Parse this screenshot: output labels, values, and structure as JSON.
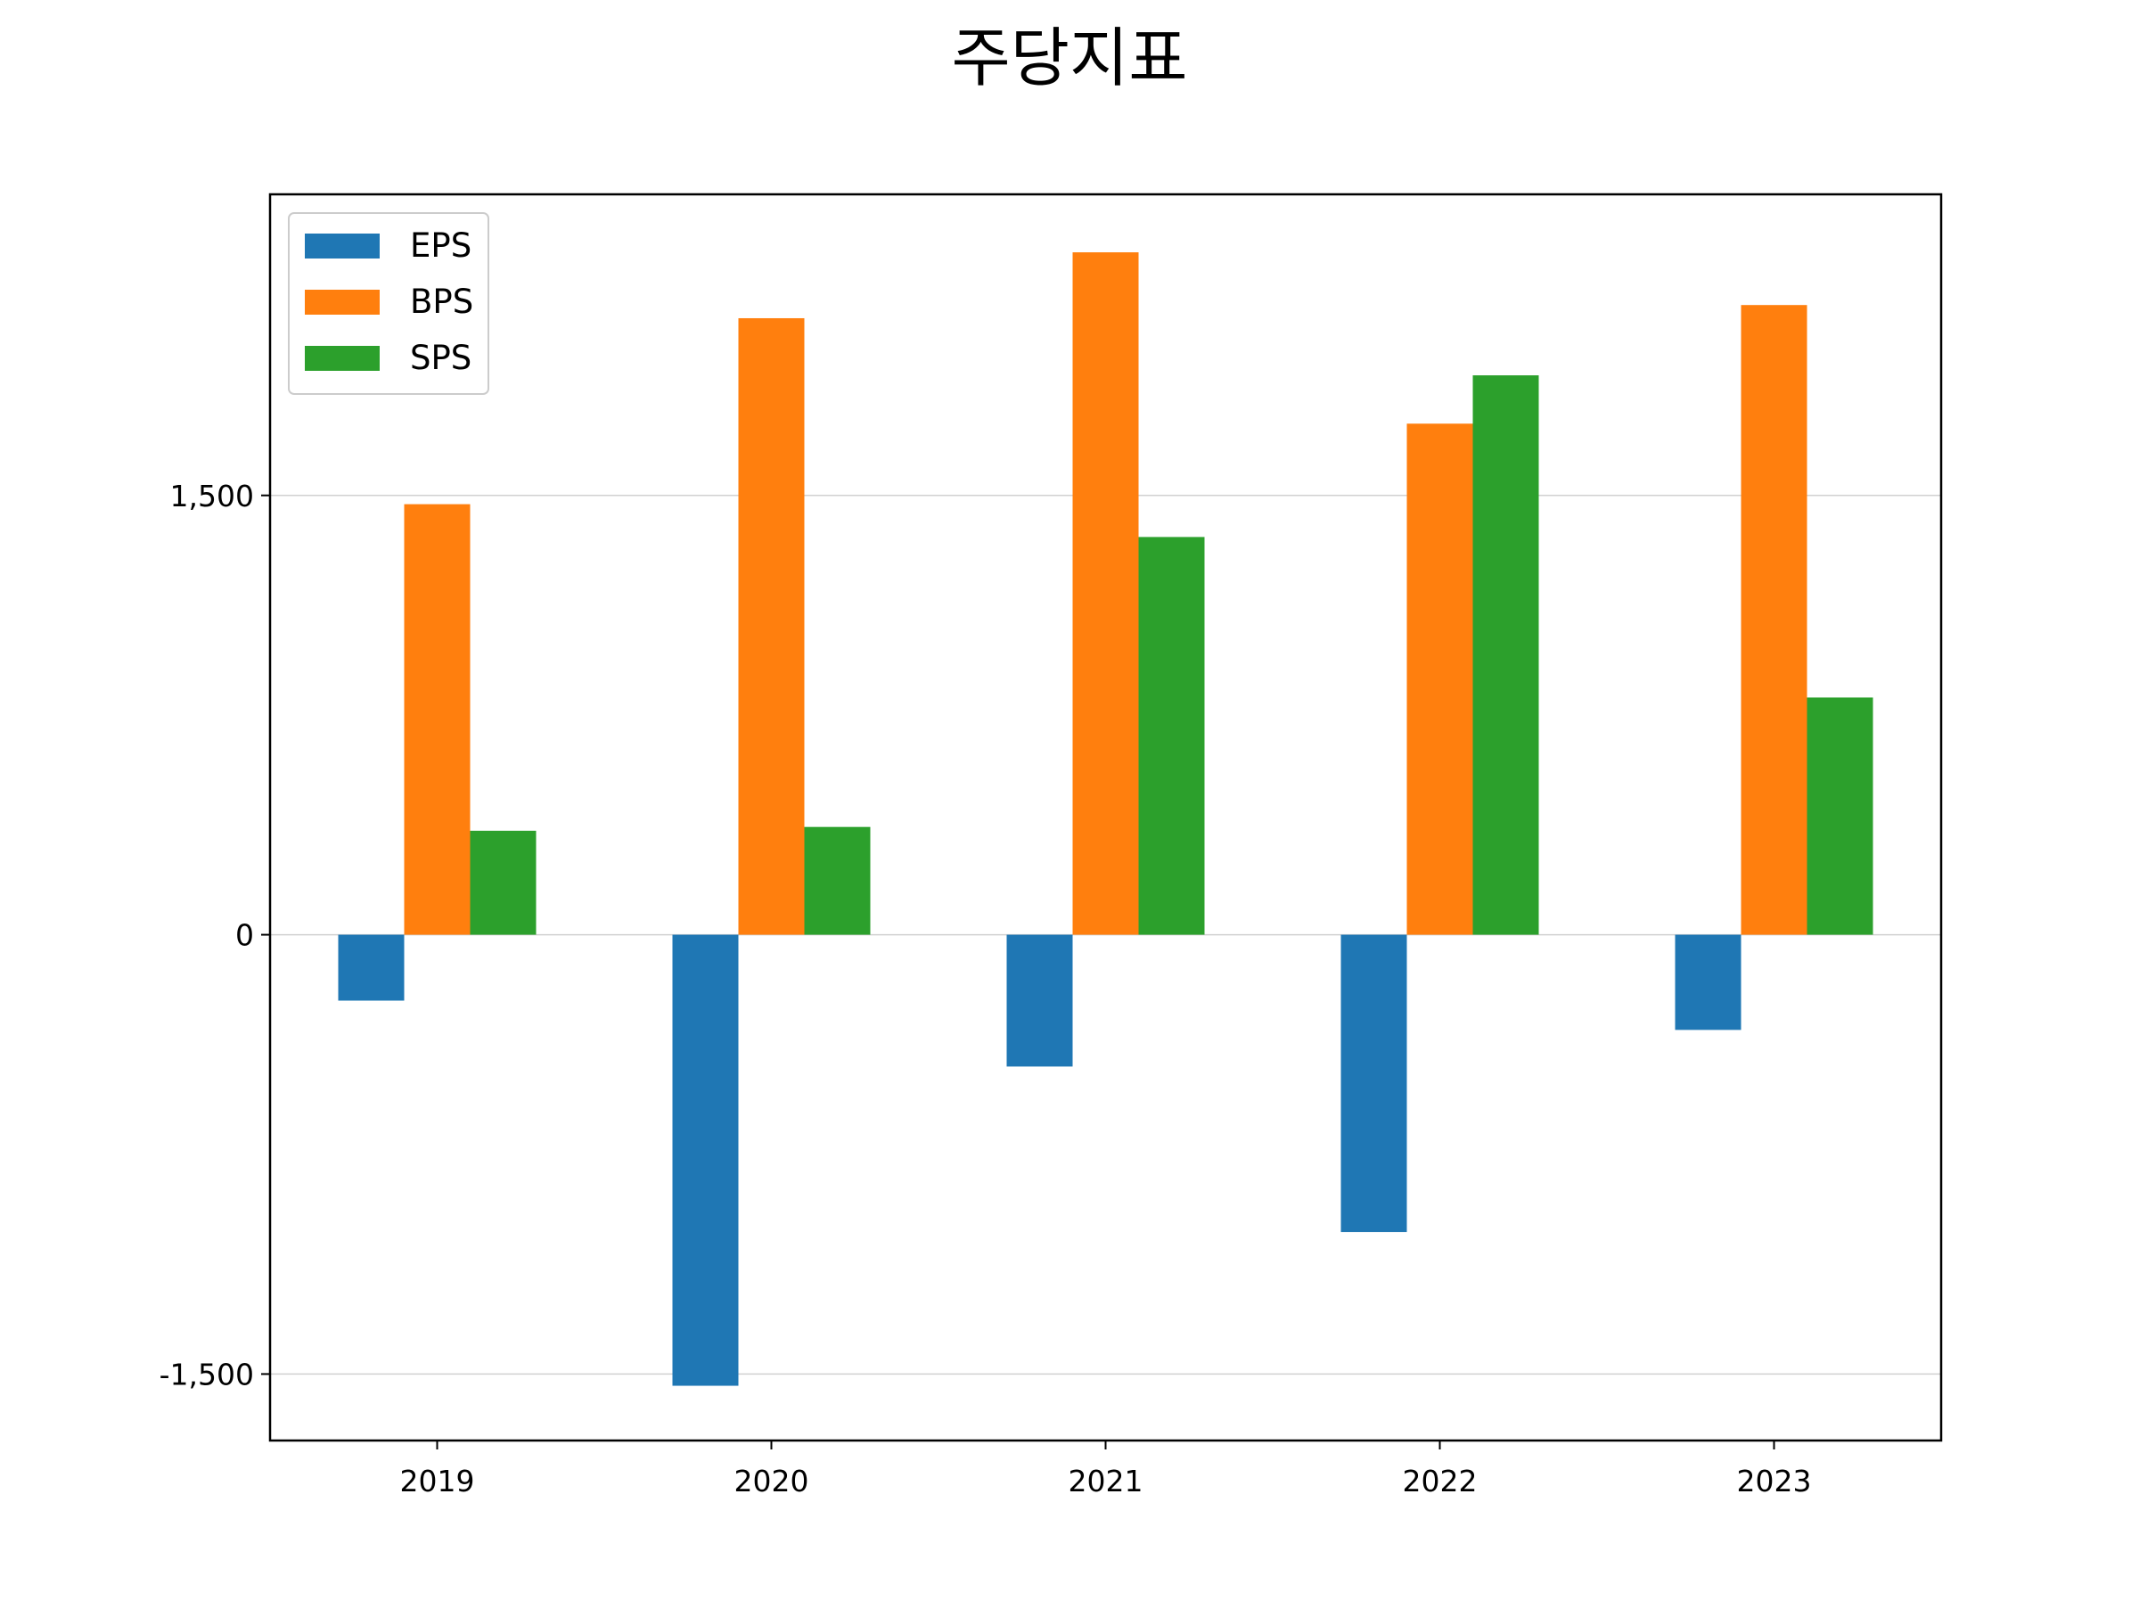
{
  "chart_data": {
    "type": "bar",
    "title": "주당지표",
    "xlabel": "",
    "ylabel": "",
    "categories": [
      "2019",
      "2020",
      "2021",
      "2022",
      "2023"
    ],
    "series": [
      {
        "name": "EPS",
        "color": "#1f77b4",
        "values": [
          -225,
          -1540,
          -450,
          -1015,
          -325
        ]
      },
      {
        "name": "BPS",
        "color": "#ff7f0e",
        "values": [
          1470,
          2105,
          2330,
          1745,
          2150
        ]
      },
      {
        "name": "SPS",
        "color": "#2ca02c",
        "values": [
          355,
          368,
          1358,
          1910,
          810
        ]
      }
    ],
    "ylim": [
      -1727,
      2528
    ],
    "yticks": [
      -1500,
      0,
      1500
    ],
    "ytick_labels": [
      "-1,500",
      "0",
      "1,500"
    ],
    "grid": {
      "y": true,
      "x": false
    },
    "legend": "top-left"
  }
}
